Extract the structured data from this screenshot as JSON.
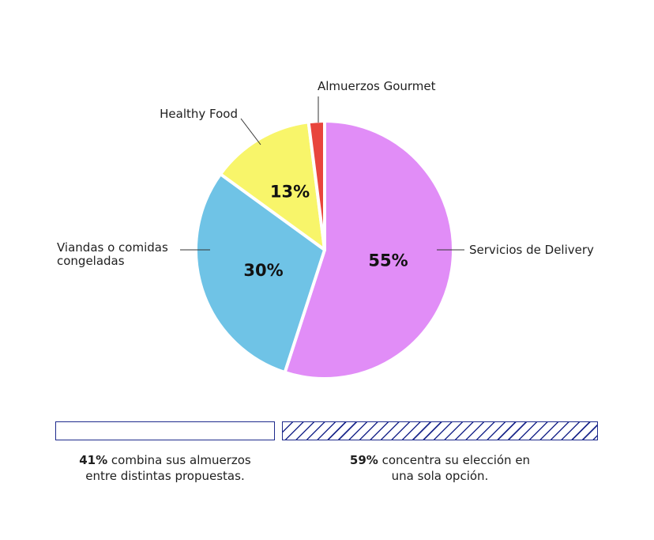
{
  "chart_data": {
    "type": "pie",
    "slices": [
      {
        "label": "Servicios de Delivery",
        "value": 55,
        "value_label": "55%",
        "color": "#e18df7"
      },
      {
        "label": "Viandas o comidas congeladas",
        "value": 30,
        "value_label": "30%",
        "color": "#6fc3e6"
      },
      {
        "label": "Healthy Food",
        "value": 13,
        "value_label": "13%",
        "color": "#f8f56a"
      },
      {
        "label": "Almuerzos Gourmet",
        "value": 2,
        "value_label": "",
        "color": "#e8453c"
      }
    ],
    "start_angle_deg": 0,
    "direction": "clockwise"
  },
  "labels": {
    "delivery": "Servicios de Delivery",
    "viandas_line1": "Viandas o comidas",
    "viandas_line2": "congeladas",
    "healthy": "Healthy Food",
    "gourmet": "Almuerzos Gourmet"
  },
  "summary": {
    "left": {
      "value": 41,
      "value_label": "41%",
      "text_line1": " combina sus almuerzos",
      "text_line2": "entre distintas propuestas.",
      "bar_style": "empty"
    },
    "right": {
      "value": 59,
      "value_label": "59%",
      "text_line1": " concentra su elección en",
      "text_line2": "una sola opción.",
      "bar_style": "hatched"
    },
    "accent_color": "#1e2a8c"
  }
}
